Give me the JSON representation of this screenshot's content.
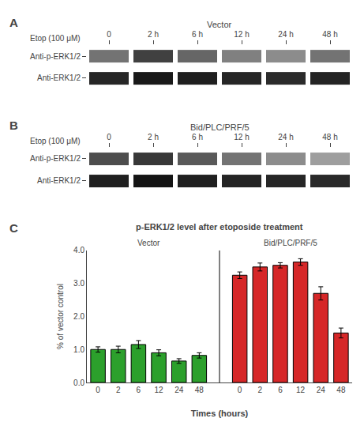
{
  "chart_data": [
    {
      "type": "heatmap",
      "title": "Vector",
      "annotations": [
        "A"
      ],
      "xlabel": "Etop (100 μM)",
      "x": [
        "0",
        "2 h",
        "6 h",
        "12 h",
        "24 h",
        "48 h"
      ],
      "y": [
        "Anti-p-ERK1/2",
        "Anti-ERK1/2"
      ],
      "values": [
        [
          0.55,
          0.75,
          0.6,
          0.5,
          0.45,
          0.55
        ],
        [
          0.85,
          0.9,
          0.88,
          0.85,
          0.83,
          0.86
        ]
      ],
      "zlim": [
        0,
        1
      ],
      "grid": false
    },
    {
      "type": "heatmap",
      "title": "Bid/PLC/PRF/5",
      "annotations": [
        "B"
      ],
      "xlabel": "Etop (100 μM)",
      "x": [
        "0",
        "2 h",
        "6 h",
        "12 h",
        "24 h",
        "48 h"
      ],
      "y": [
        "Anti-p-ERK1/2",
        "Anti-ERK1/2"
      ],
      "values": [
        [
          0.7,
          0.78,
          0.65,
          0.55,
          0.45,
          0.38
        ],
        [
          0.88,
          0.92,
          0.88,
          0.86,
          0.85,
          0.84
        ]
      ],
      "zlim": [
        0,
        1
      ],
      "grid": false
    },
    {
      "type": "bar",
      "title": "p-ERK1/2 level after etoposide treatment",
      "annotations": [
        "C"
      ],
      "xlabel": "Times (hours)",
      "ylabel": "% of vector control",
      "categories": [
        "0",
        "2",
        "6",
        "12",
        "24",
        "48"
      ],
      "series": [
        {
          "name": "Vector",
          "values": [
            1.0,
            1.0,
            1.15,
            0.9,
            0.65,
            0.82
          ],
          "errors": [
            0.08,
            0.1,
            0.12,
            0.09,
            0.07,
            0.08
          ]
        },
        {
          "name": "Bid/PLC/PRF/5",
          "values": [
            3.25,
            3.5,
            3.55,
            3.65,
            2.7,
            1.5
          ],
          "errors": [
            0.1,
            0.12,
            0.08,
            0.1,
            0.2,
            0.15
          ]
        }
      ],
      "ylim": [
        0,
        4.0
      ],
      "yticks": [
        {
          "value": 0,
          "label": "0.0"
        },
        {
          "value": 1,
          "label": "1.0"
        },
        {
          "value": 2,
          "label": "2.0"
        },
        {
          "value": 3,
          "label": "3.0"
        },
        {
          "value": 4,
          "label": "4.0"
        }
      ],
      "grid": false
    }
  ]
}
